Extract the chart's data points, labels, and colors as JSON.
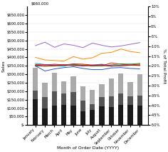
{
  "months": [
    "January",
    "February",
    "March",
    "April",
    "May",
    "June",
    "July",
    "August",
    "September",
    "October",
    "November",
    "December"
  ],
  "bar_bottom": [
    155000,
    100000,
    115000,
    120000,
    115000,
    80000,
    90000,
    110000,
    105000,
    120000,
    120000,
    115000
  ],
  "bar_mid": [
    205000,
    165000,
    200000,
    185000,
    195000,
    145000,
    125000,
    165000,
    170000,
    185000,
    170000,
    175000
  ],
  "bar_top": [
    340000,
    250000,
    310000,
    260000,
    290000,
    230000,
    210000,
    240000,
    275000,
    305000,
    255000,
    300000
  ],
  "line_data": {
    "purple": [
      470000,
      490000,
      460000,
      480000,
      472000,
      458000,
      485000,
      472000,
      462000,
      468000,
      478000,
      488000
    ],
    "orange": [
      400000,
      385000,
      382000,
      378000,
      405000,
      390000,
      398000,
      425000,
      430000,
      450000,
      435000,
      428000
    ],
    "cyan": [
      365000,
      358000,
      352000,
      348000,
      360000,
      350000,
      355000,
      360000,
      348000,
      355000,
      360000,
      354000
    ],
    "red": [
      358000,
      355000,
      360000,
      355000,
      362000,
      360000,
      355000,
      350000,
      368000,
      360000,
      355000,
      360000
    ],
    "green": [
      348000,
      350000,
      355000,
      352000,
      358000,
      354000,
      350000,
      350000,
      356000,
      362000,
      360000,
      365000
    ],
    "magenta": [
      352000,
      358000,
      354000,
      358000,
      352000,
      350000,
      354000,
      358000,
      352000,
      350000,
      355000,
      352000
    ],
    "darkred": [
      353000,
      348000,
      350000,
      355000,
      352000,
      355000,
      350000,
      353000,
      348000,
      351000,
      353000,
      355000
    ],
    "blue": [
      350000,
      320000,
      332000,
      340000,
      345000,
      335000,
      328000,
      328000,
      338000,
      340000,
      335000,
      332000
    ]
  },
  "line_colors": {
    "purple": "#9966cc",
    "orange": "#ff8800",
    "cyan": "#00aacc",
    "red": "#dd2200",
    "green": "#228833",
    "magenta": "#cc1188",
    "darkred": "#993300",
    "blue": "#2255cc"
  },
  "right_axis_labels": [
    "10%",
    "5%",
    "0%",
    "-5%",
    "-10%",
    "-15%",
    "-20%",
    "-25%",
    "-30%",
    "-35%",
    "-40%",
    "-45%",
    "-50%"
  ],
  "right_axis_pcts": [
    0.1,
    0.05,
    0.0,
    -0.05,
    -0.1,
    -0.15,
    -0.2,
    -0.25,
    -0.3,
    -0.35,
    -0.4,
    -0.45,
    -0.5
  ],
  "left_ylabel": "Sales",
  "right_ylabel": "% of Total Profit",
  "xlabel": "Month of Order Date (YYYY)",
  "bar_colors": [
    "#1a1a1a",
    "#555555",
    "#aaaaaa"
  ],
  "bg_color": "#ffffff",
  "grid_color": "#e0e0e0",
  "left_ylim": [
    0,
    700000
  ],
  "left_ticks": [
    0,
    50000,
    100000,
    150000,
    200000,
    250000,
    300000,
    350000,
    400000,
    450000,
    500000,
    550000,
    600000,
    650000
  ],
  "left_tick_labels": [
    "$-",
    "$50,000",
    "$100,000",
    "$150,000",
    "$200,000",
    "$250,000",
    "$300,000",
    "$350,000",
    "$400,000",
    "$450,000",
    "$500,000",
    "$550,000",
    "$600,000",
    "$650,000"
  ],
  "top_label": "$660,000",
  "axis_fontsize": 4.5,
  "tick_fontsize": 3.8,
  "linewidth": 0.7
}
